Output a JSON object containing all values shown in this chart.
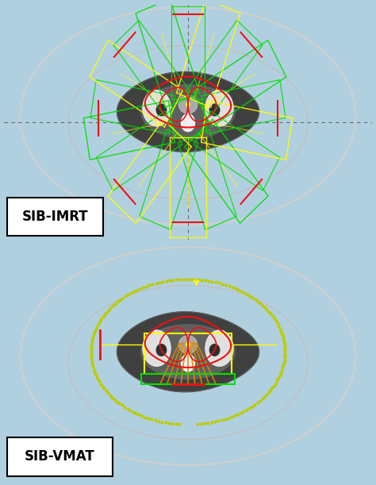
{
  "background_color": "#000000",
  "outer_bg": "#c8c8c8",
  "outer_ellipse_color": "#d0d0d0",
  "inner_ellipse_color": "#c0c0c0",
  "crosshair_color": "#505050",
  "label1": "SIB-IMRT",
  "label2": "SIB-VMAT",
  "label_bg": "#ffffff",
  "label_text_color": "#000000",
  "label_fontsize": 12,
  "beam_yellow": "#ffff00",
  "beam_green": "#00dd00",
  "beam_red": "#ee1111",
  "beam_orange": "#dd8800",
  "beam_dotted_yellow": "#bbcc00",
  "figure_bg": "#b0d0e0",
  "panel_border": "#ffffff",
  "fig_width": 4.74,
  "fig_height": 6.11,
  "dpi": 100
}
